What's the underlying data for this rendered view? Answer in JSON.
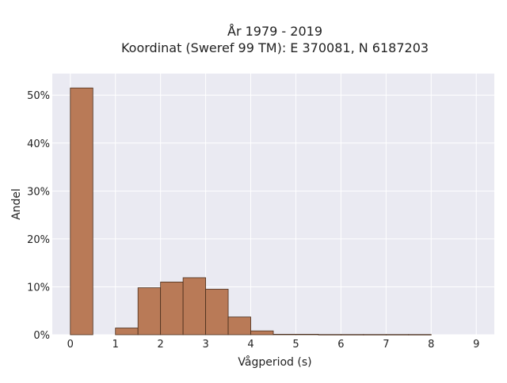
{
  "chart_data": {
    "type": "bar",
    "title": "År 1979 - 2019",
    "subtitle": "Koordinat (Sweref 99 TM): E 370081, N 6187203",
    "xlabel": "Vågperiod (s)",
    "ylabel": "Andel",
    "xlim": [
      -0.4,
      9.4
    ],
    "ylim": [
      0,
      0.545
    ],
    "xticks": [
      0,
      1,
      2,
      3,
      4,
      5,
      6,
      7,
      8,
      9
    ],
    "xtick_labels": [
      "0",
      "1",
      "2",
      "3",
      "4",
      "5",
      "6",
      "7",
      "8",
      "9"
    ],
    "yticks": [
      0,
      0.1,
      0.2,
      0.3,
      0.4,
      0.5
    ],
    "ytick_labels": [
      "0%",
      "10%",
      "20%",
      "30%",
      "40%",
      "50%"
    ],
    "bin_width": 0.5,
    "bins": [
      {
        "start": 0.0,
        "value": 0.515
      },
      {
        "start": 0.5,
        "value": 0.0
      },
      {
        "start": 1.0,
        "value": 0.014
      },
      {
        "start": 1.5,
        "value": 0.098
      },
      {
        "start": 2.0,
        "value": 0.11
      },
      {
        "start": 2.5,
        "value": 0.119
      },
      {
        "start": 3.0,
        "value": 0.095
      },
      {
        "start": 3.5,
        "value": 0.037
      },
      {
        "start": 4.0,
        "value": 0.008
      },
      {
        "start": 4.5,
        "value": 0.001
      },
      {
        "start": 5.0,
        "value": 0.001
      },
      {
        "start": 5.5,
        "value": 0.0005
      },
      {
        "start": 6.0,
        "value": 0.0005
      },
      {
        "start": 6.5,
        "value": 0.0005
      },
      {
        "start": 7.0,
        "value": 0.0005
      },
      {
        "start": 7.5,
        "value": 0.0005
      }
    ],
    "grid": true,
    "colors": {
      "bar_fill": "#b97a57",
      "bar_edge": "#4a2e1c",
      "plot_bg": "#eaeaf2",
      "grid": "#ffffff"
    }
  }
}
